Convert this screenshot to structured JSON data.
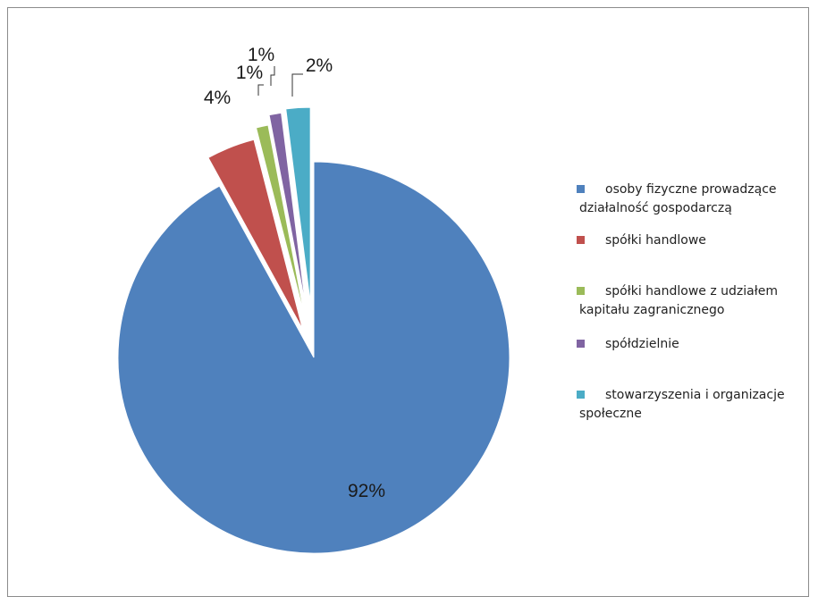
{
  "chart_data": {
    "type": "pie",
    "title": "",
    "categories": [
      "osoby fizyczne prowadzące działalność gospodarczą",
      "spółki handlowe",
      "spółki handlowe z udziałem kapitału zagranicznego",
      "spółdzielnie",
      "stowarzyszenia i organizacje społeczne"
    ],
    "values": [
      92,
      4,
      1,
      1,
      2
    ],
    "data_labels": [
      "92%",
      "4%",
      "1%",
      "1%",
      "2%"
    ],
    "legend": [
      [
        "osoby fizyczne prowadzące",
        "działalność gospodarczą"
      ],
      [
        "spółki handlowe"
      ],
      [
        "spółki handlowe z udziałem",
        "kapitału zagranicznego"
      ],
      [
        "spółdzielnie"
      ],
      [
        "stowarzyszenia i organizacje",
        "społeczne"
      ]
    ],
    "colors": [
      "#4f81bd",
      "#c0504d",
      "#9bbb59",
      "#8064a2",
      "#4bacc6"
    ],
    "exploded": true,
    "legend_position": "right"
  }
}
